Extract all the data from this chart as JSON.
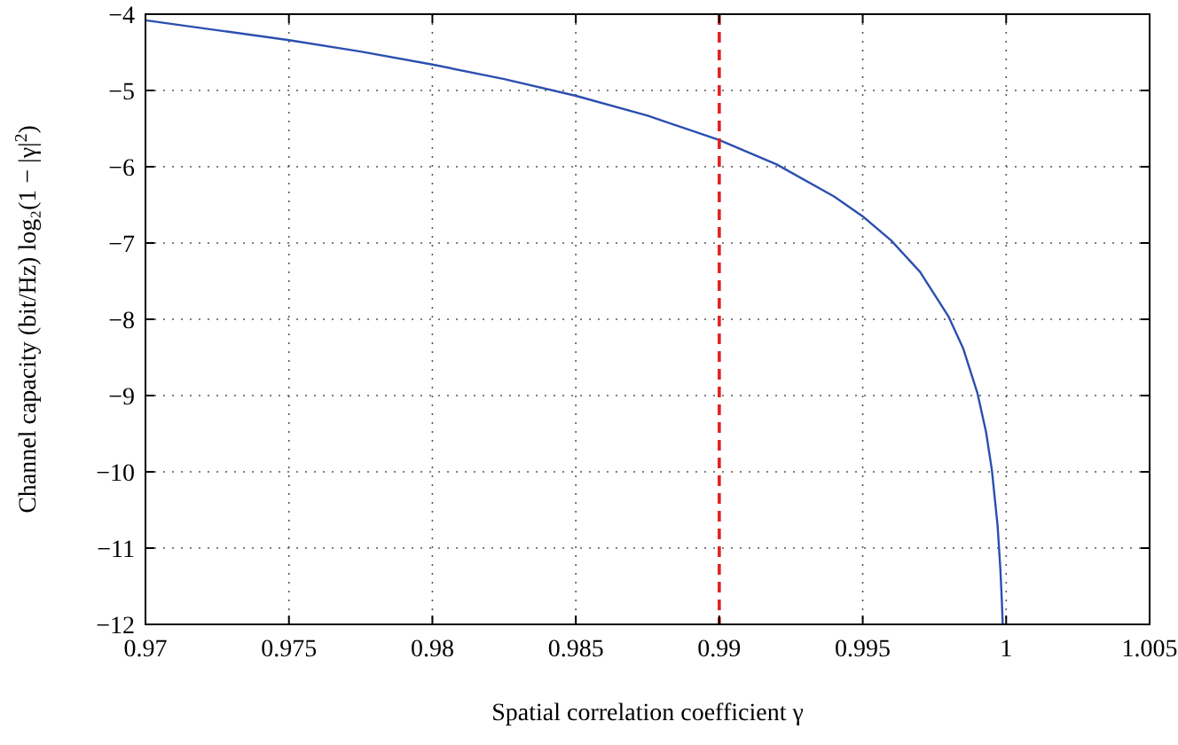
{
  "chart_data": {
    "type": "line",
    "xlabel": "Spatial correlation coefficient γ",
    "ylabel": "Channel capacity (bit/Hz) log₂(1 − |γ|$^{2}$)",
    "series": [
      {
        "color": "#2b4fb0",
        "x": [
          0.97,
          0.975,
          0.9775,
          0.98,
          0.9825,
          0.985,
          0.9875,
          0.99,
          0.992,
          0.994,
          0.995,
          0.996,
          0.997,
          0.998,
          0.9985,
          0.999,
          0.9993,
          0.9995,
          0.9997,
          0.9998,
          0.99985,
          0.99988
        ],
        "values": [
          -4.08,
          -4.34,
          -4.49,
          -4.66,
          -4.85,
          -5.07,
          -5.33,
          -5.65,
          -5.97,
          -6.39,
          -6.65,
          -6.97,
          -7.38,
          -7.97,
          -8.38,
          -8.97,
          -9.48,
          -9.97,
          -10.7,
          -11.29,
          -11.7,
          -12
        ]
      }
    ],
    "xlim": [
      0.97,
      1.005
    ],
    "xticks": [
      0.97,
      0.975,
      0.98,
      0.985,
      0.99,
      0.995,
      1,
      1.005
    ],
    "ylim": [
      -12,
      -4
    ],
    "yticks": [
      -12,
      -11,
      -10,
      -9,
      -8,
      -7,
      -6,
      -5,
      -4
    ],
    "ref_lines": [
      {
        "axis": "x",
        "value": 0.99,
        "color": "#e02020",
        "line_style": "dashed"
      }
    ],
    "grid": true,
    "line_style": "solid",
    "marker": "none"
  }
}
